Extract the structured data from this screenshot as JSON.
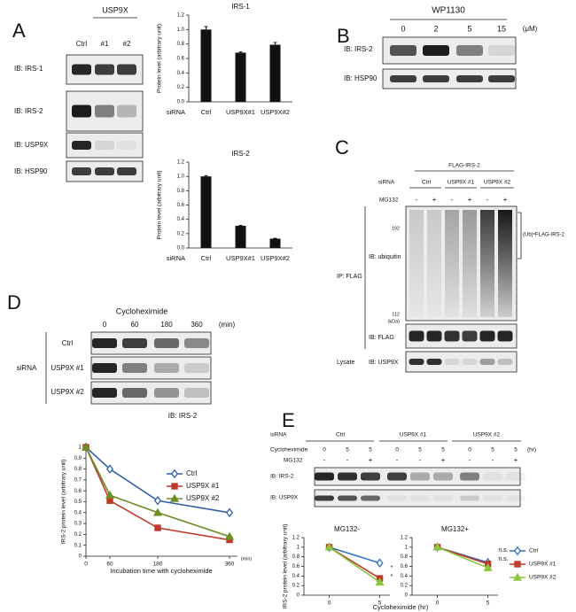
{
  "chart_data": [
    {
      "type": "bar",
      "title": "IRS-1",
      "y_label": "Protein level (arbitrary unit)",
      "row_label": "siRNA",
      "categories": [
        "Ctrl",
        "USP9X#1",
        "USP9X#2"
      ],
      "values": [
        1.0,
        0.68,
        0.79
      ],
      "errors": [
        0.04,
        0.01,
        0.03
      ],
      "color": "#111111",
      "ylim": [
        0,
        1.2
      ],
      "yticks": [
        {
          "value": 0,
          "label": "0.0"
        },
        0.2,
        0.4,
        0.6,
        0.8,
        {
          "value": 1,
          "label": "1.0"
        },
        1.2
      ]
    },
    {
      "type": "bar",
      "title": "IRS-2",
      "y_label": "Protein level (arbitrary unit)",
      "row_label": "siRNA",
      "categories": [
        "Ctrl",
        "USP9X#1",
        "USP9X#2"
      ],
      "values": [
        1.0,
        0.31,
        0.13
      ],
      "errors": [
        0.01,
        0.005,
        0.005
      ],
      "color": "#111111",
      "ylim": [
        0,
        1.2
      ],
      "yticks": [
        {
          "value": 0,
          "label": "0.0"
        },
        0.2,
        0.4,
        0.6,
        0.8,
        {
          "value": 1,
          "label": "1.0"
        },
        1.2
      ]
    },
    {
      "type": "line",
      "y_label": "IRS-2 protein level (arbitrary unit)",
      "x_label": "Incubation time with cycloheximide",
      "x_unit": "(min)",
      "x": [
        0,
        60,
        180,
        360
      ],
      "xlim": [
        0,
        380
      ],
      "xticks": [
        0,
        60,
        180,
        360
      ],
      "ylim": [
        0,
        1
      ],
      "yticks": [
        0,
        0.1,
        0.2,
        0.3,
        0.4,
        0.5,
        0.6,
        0.7,
        0.8,
        0.9,
        1
      ],
      "legend": "upper right",
      "series": [
        {
          "name": "Ctrl",
          "color": "#2f5ea8",
          "marker": "diamond",
          "values": [
            1,
            0.8,
            0.51,
            0.4
          ]
        },
        {
          "name": "USP9X #1",
          "color": "#c0392b",
          "marker": "square",
          "values": [
            1,
            0.51,
            0.26,
            0.15
          ]
        },
        {
          "name": "USP9X #2",
          "color": "#6b8e23",
          "marker": "triangle",
          "values": [
            1,
            0.56,
            0.4,
            0.18
          ]
        }
      ]
    },
    {
      "type": "line",
      "title": "MG132-",
      "y_label": "IRS-2 protein level (arbitrary unit)",
      "x_label": "Cycloheximide  (hr)",
      "x": [
        0,
        5
      ],
      "xlim": [
        -2.5,
        6
      ],
      "xticks": [
        0,
        5
      ],
      "ylim": [
        0,
        1.2
      ],
      "yticks": [
        0,
        0.2,
        0.4,
        0.6,
        0.8,
        1,
        1.2
      ],
      "annotations": [
        "*",
        "*"
      ],
      "series": [
        {
          "name": "Ctrl",
          "color": "#2f6fc0",
          "marker": "diamond",
          "values": [
            1.0,
            0.67
          ],
          "errors": [
            0.05,
            0.08
          ]
        },
        {
          "name": "USP9X #1",
          "color": "#c0392b",
          "marker": "square",
          "values": [
            1.0,
            0.35
          ],
          "errors": [
            0.05,
            0.03
          ]
        },
        {
          "name": "USP9X #2",
          "color": "#8cc63f",
          "marker": "triangle",
          "values": [
            1.0,
            0.27
          ],
          "errors": [
            0.05,
            0.03
          ]
        }
      ]
    },
    {
      "type": "line",
      "title": "MG132+",
      "x": [
        0,
        5
      ],
      "xlim": [
        -2.5,
        6
      ],
      "xticks": [
        0,
        5
      ],
      "ylim": [
        0,
        1.2
      ],
      "yticks": [
        0,
        0.2,
        0.4,
        0.6,
        0.8,
        1,
        1.2
      ],
      "annotations": [
        "n.s.",
        "n.s."
      ],
      "legend": "right",
      "series": [
        {
          "name": "Ctrl",
          "color": "#2f6fc0",
          "marker": "diamond",
          "values": [
            1.0,
            0.68
          ],
          "errors": [
            0.1,
            0.05
          ]
        },
        {
          "name": "USP9X #1",
          "color": "#c0392b",
          "marker": "square",
          "values": [
            1.0,
            0.65
          ],
          "errors": [
            0.1,
            0.04
          ]
        },
        {
          "name": "USP9X #2",
          "color": "#8cc63f",
          "marker": "triangle",
          "values": [
            1.0,
            0.57
          ],
          "errors": [
            0.1,
            0.07
          ]
        }
      ]
    }
  ],
  "panel_a": {
    "label": "A",
    "group_label": "USP9X",
    "lanes": [
      "Ctrl",
      "#1",
      "#2"
    ],
    "blots": [
      "IB: IRS-1",
      "IB: IRS-2",
      "IB: USP9X",
      "IB: HSP90"
    ]
  },
  "panel_b": {
    "label": "B",
    "treatment": "WP1130",
    "doses": [
      "0",
      "2",
      "5",
      "15"
    ],
    "unit": "(μM)",
    "blots": [
      "IB: IRS-2",
      "IB: HSP90"
    ]
  },
  "panel_c": {
    "label": "C",
    "construct": "FLAG-IRS-2",
    "row_label": "siRNA",
    "groups": [
      "Ctrl",
      "USP9X #1",
      "USP9X #2"
    ],
    "treatment": "MG132",
    "signs": [
      "-",
      "+",
      "-",
      "+",
      "-",
      "+"
    ],
    "markers": [
      "192",
      "112",
      "(kDa)"
    ],
    "smear_label": "(Ub)ⁿFLAG-IRS-2",
    "ip_label": "IP: FLAG",
    "blots": [
      "IB: ubiquitin",
      "IB: FLAG",
      "IB: USP9X"
    ],
    "lysate_label": "Lysate"
  },
  "panel_d": {
    "label": "D",
    "treatment": "Cycloheximide",
    "times": [
      "0",
      "60",
      "180",
      "360"
    ],
    "unit": "(min)",
    "lanes": [
      "Ctrl",
      "USP9X #1",
      "USP9X #2"
    ],
    "row_label": "siRNA",
    "blot": "IB: IRS-2"
  },
  "panel_e": {
    "label": "E",
    "row_label": "siRNA",
    "groups": [
      "Ctrl",
      "USP9X #1",
      "USP9X #2"
    ],
    "treatment": "Cycloheximide",
    "times": [
      "0",
      "5",
      "5",
      "0",
      "5",
      "5",
      "0",
      "5",
      "5"
    ],
    "unit": "(hr)",
    "inhibitor": "MG132",
    "signs": [
      "-",
      "-",
      "+",
      "-",
      "-",
      "+",
      "-",
      "-",
      "+"
    ],
    "blots": [
      "IB: IRS-2",
      "IB: USP9X"
    ]
  }
}
